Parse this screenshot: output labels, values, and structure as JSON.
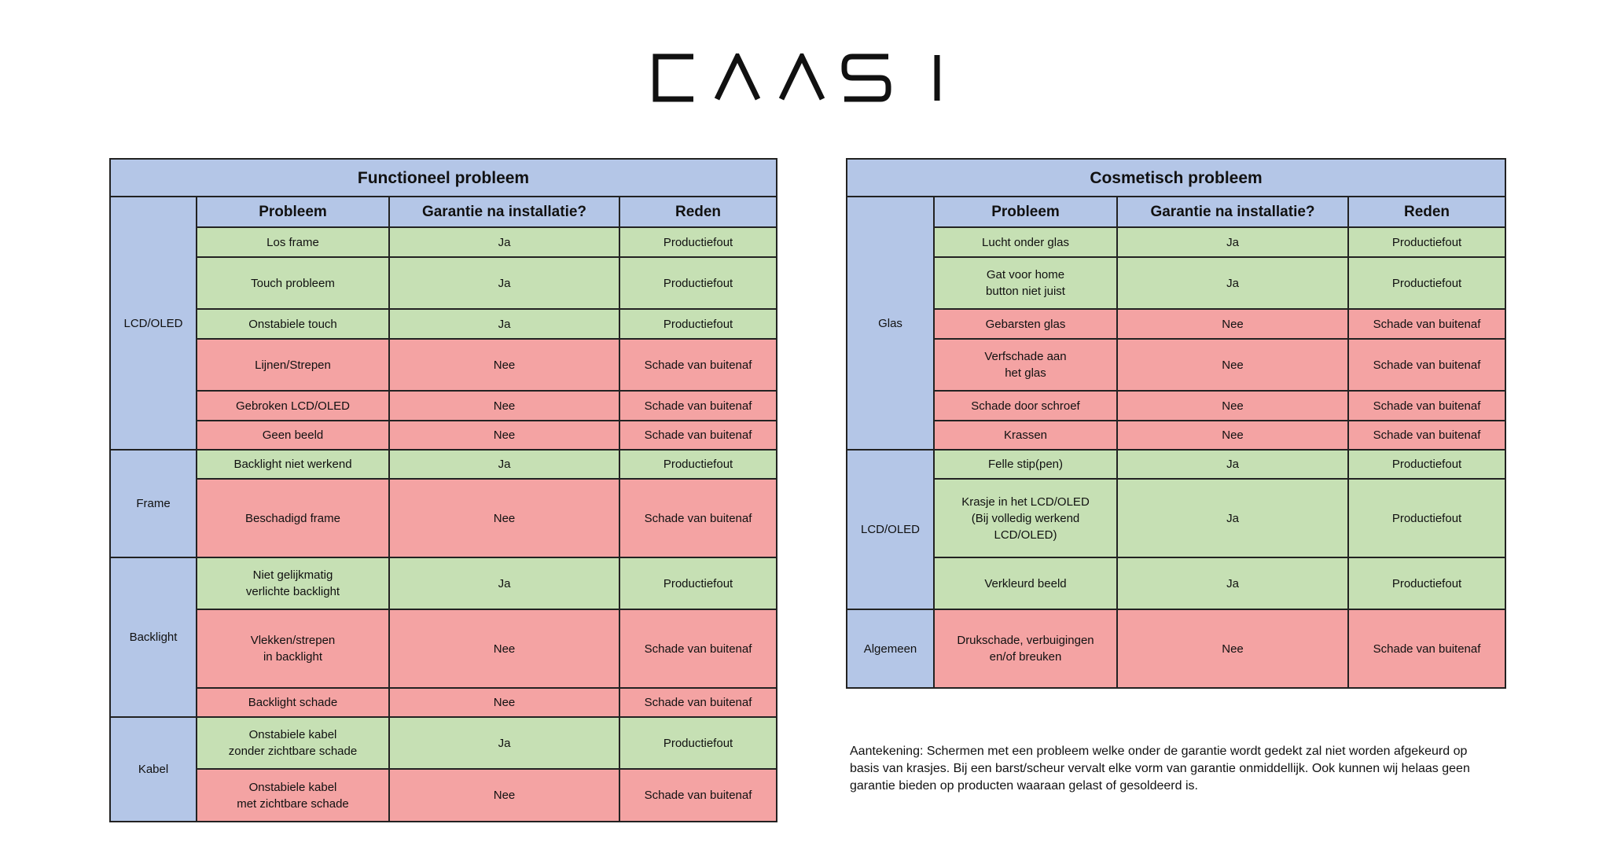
{
  "logo": {
    "text": "CAASI"
  },
  "functional": {
    "title": "Functioneel probleem",
    "headers": [
      "Probleem",
      "Garantie na installatie?",
      "Reden"
    ],
    "groups": [
      {
        "category": "LCD/OLED",
        "rows": [
          {
            "problem": "Los frame",
            "warranty": "Ja",
            "reason": "Productiefout",
            "status": "ok"
          },
          {
            "problem": "Touch probleem",
            "warranty": "Ja",
            "reason": "Productiefout",
            "status": "ok"
          },
          {
            "problem": "Onstabiele touch",
            "warranty": "Ja",
            "reason": "Productiefout",
            "status": "ok"
          },
          {
            "problem": "Lijnen/Strepen",
            "warranty": "Nee",
            "reason": "Schade van buitenaf",
            "status": "bad"
          },
          {
            "problem": "Gebroken LCD/OLED",
            "warranty": "Nee",
            "reason": "Schade van buitenaf",
            "status": "bad"
          },
          {
            "problem": "Geen beeld",
            "warranty": "Nee",
            "reason": "Schade van buitenaf",
            "status": "bad"
          }
        ]
      },
      {
        "category": "Frame",
        "rows": [
          {
            "problem": "Backlight niet werkend",
            "warranty": "Ja",
            "reason": "Productiefout",
            "status": "ok"
          },
          {
            "problem": "Beschadigd frame",
            "warranty": "Nee",
            "reason": "Schade van buitenaf",
            "status": "bad"
          }
        ]
      },
      {
        "category": "Backlight",
        "rows": [
          {
            "problem": "Niet gelijkmatig\nverlichte backlight",
            "warranty": "Ja",
            "reason": "Productiefout",
            "status": "ok"
          },
          {
            "problem": "Vlekken/strepen\nin backlight",
            "warranty": "Nee",
            "reason": "Schade van buitenaf",
            "status": "bad"
          },
          {
            "problem": "Backlight schade",
            "warranty": "Nee",
            "reason": "Schade van buitenaf",
            "status": "bad"
          }
        ]
      },
      {
        "category": "Kabel",
        "rows": [
          {
            "problem": "Onstabiele kabel\nzonder zichtbare schade",
            "warranty": "Ja",
            "reason": "Productiefout",
            "status": "ok"
          },
          {
            "problem": "Onstabiele kabel\nmet zichtbare schade",
            "warranty": "Nee",
            "reason": "Schade van buitenaf",
            "status": "bad"
          }
        ]
      }
    ]
  },
  "cosmetic": {
    "title": "Cosmetisch probleem",
    "headers": [
      "Probleem",
      "Garantie na installatie?",
      "Reden"
    ],
    "groups": [
      {
        "category": "Glas",
        "rows": [
          {
            "problem": "Lucht onder glas",
            "warranty": "Ja",
            "reason": "Productiefout",
            "status": "ok"
          },
          {
            "problem": "Gat voor home\nbutton niet juist",
            "warranty": "Ja",
            "reason": "Productiefout",
            "status": "ok"
          },
          {
            "problem": "Gebarsten glas",
            "warranty": "Nee",
            "reason": "Schade van buitenaf",
            "status": "bad"
          },
          {
            "problem": "Verfschade aan\nhet glas",
            "warranty": "Nee",
            "reason": "Schade van buitenaf",
            "status": "bad"
          },
          {
            "problem": "Schade door schroef",
            "warranty": "Nee",
            "reason": "Schade van buitenaf",
            "status": "bad"
          },
          {
            "problem": "Krassen",
            "warranty": "Nee",
            "reason": "Schade van buitenaf",
            "status": "bad"
          }
        ]
      },
      {
        "category": "LCD/OLED",
        "rows": [
          {
            "problem": "Felle stip(pen)",
            "warranty": "Ja",
            "reason": "Productiefout",
            "status": "ok"
          },
          {
            "problem": "Krasje in het LCD/OLED\n(Bij volledig werkend\nLCD/OLED)",
            "warranty": "Ja",
            "reason": "Productiefout",
            "status": "ok"
          },
          {
            "problem": "Verkleurd beeld",
            "warranty": "Ja",
            "reason": "Productiefout",
            "status": "ok"
          }
        ]
      },
      {
        "category": "Algemeen",
        "rows": [
          {
            "problem": "Drukschade, verbuigingen\nen/of breuken",
            "warranty": "Nee",
            "reason": "Schade van buitenaf",
            "status": "bad"
          }
        ]
      }
    ]
  },
  "note": "Aantekening: Schermen met een probleem welke onder de garantie wordt gedekt zal niet worden afgekeurd op basis van krasjes. Bij een barst/scheur vervalt elke vorm van garantie onmiddellijk. Ook kunnen wij helaas geen garantie bieden op producten waaraan gelast of gesoldeerd is.",
  "colors": {
    "header_blue": "#b4c6e7",
    "ok_green": "#c6e0b4",
    "bad_red": "#f4a3a3"
  }
}
